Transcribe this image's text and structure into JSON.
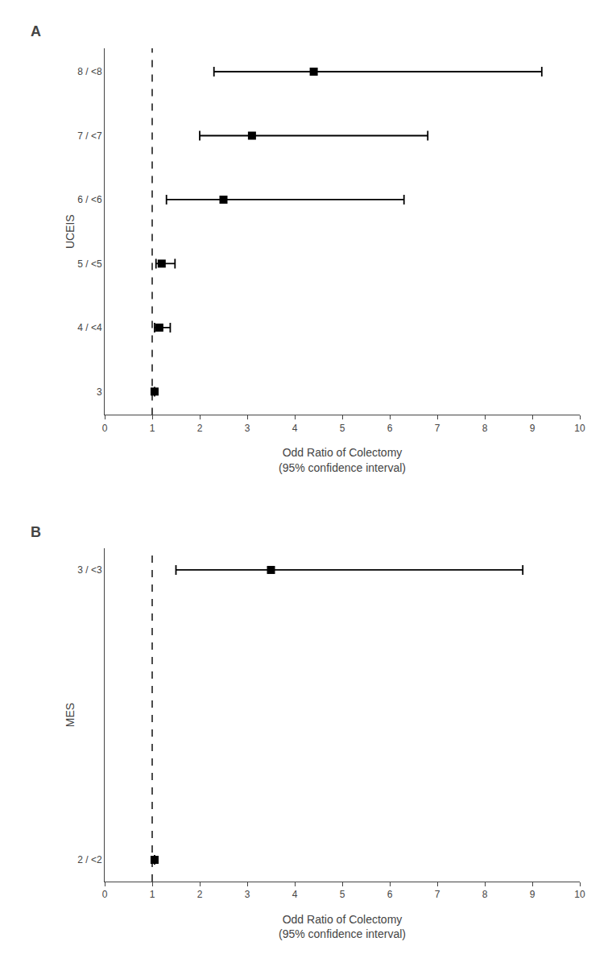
{
  "chart_data": [
    {
      "type": "forest",
      "title": "A",
      "ylabel": "UCEIS",
      "xlabel": "Odd Ratio of Colectomy\n(95% confidence interval)",
      "categories": [
        "3",
        "4 / <4",
        "5 / <5",
        "6 / <6",
        "7 / <7",
        "8 / <8"
      ],
      "values": [
        1.05,
        1.15,
        1.2,
        2.5,
        3.1,
        4.4
      ],
      "ci_low": [
        1.05,
        1.05,
        1.08,
        1.3,
        2.0,
        2.3
      ],
      "ci_high": [
        1.05,
        1.38,
        1.48,
        6.3,
        6.8,
        9.2
      ],
      "reference_x": 1,
      "xlim": [
        0,
        10
      ],
      "xticks": [
        0,
        1,
        2,
        3,
        4,
        5,
        6,
        7,
        8,
        9,
        10
      ],
      "color": "#000000",
      "marker": "square",
      "grid": false
    },
    {
      "type": "forest",
      "title": "B",
      "ylabel": "MES",
      "xlabel": "Odd Ratio of Colectomy\n(95% confidence interval)",
      "categories": [
        "2 / <2",
        "3 / <3"
      ],
      "values": [
        1.05,
        3.5
      ],
      "ci_low": [
        1.05,
        1.5
      ],
      "ci_high": [
        1.05,
        8.8
      ],
      "reference_x": 1,
      "xlim": [
        0,
        10
      ],
      "xticks": [
        0,
        1,
        2,
        3,
        4,
        5,
        6,
        7,
        8,
        9,
        10
      ],
      "color": "#000000",
      "marker": "square",
      "grid": false
    }
  ]
}
